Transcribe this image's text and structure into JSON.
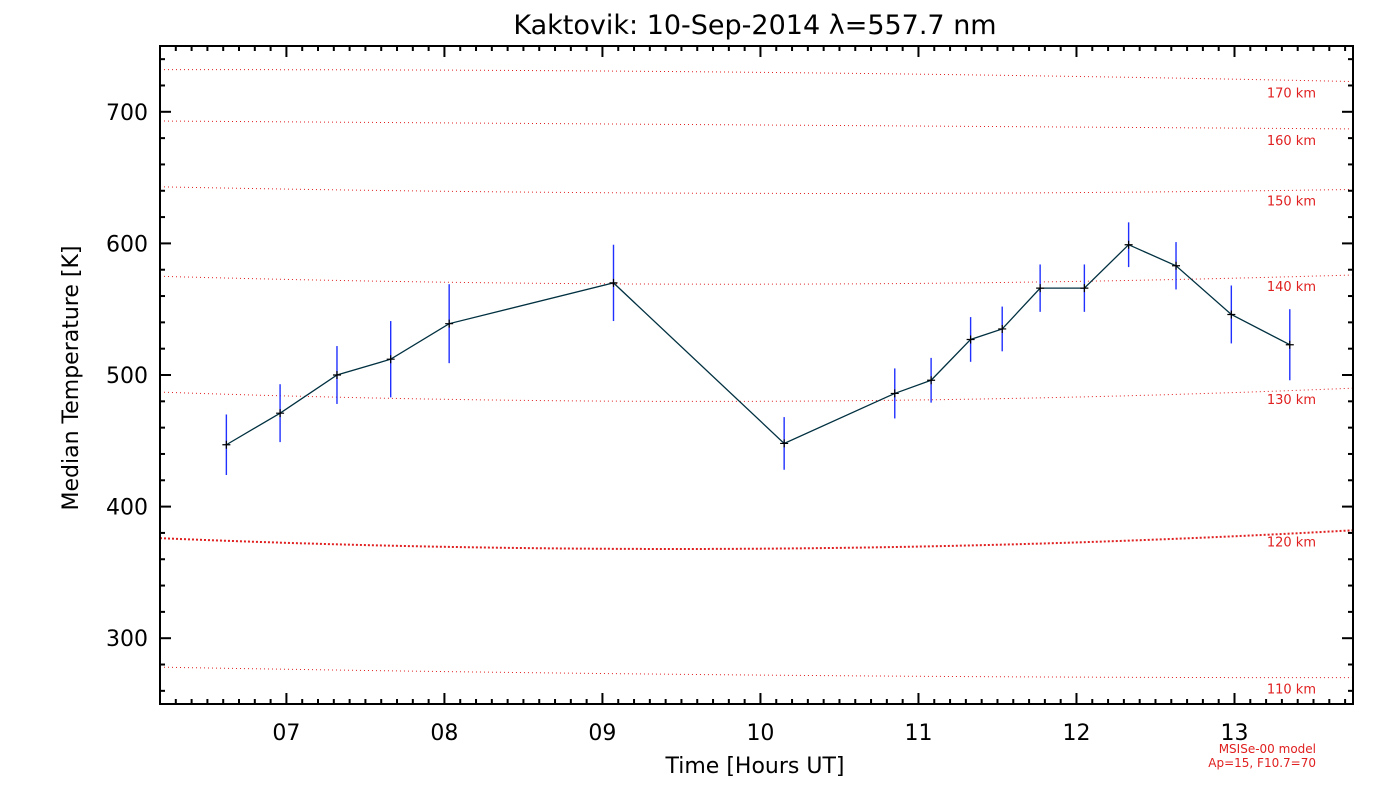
{
  "chart_data": {
    "type": "line",
    "title": "Kaktovik: 10-Sep-2014 λ=557.7 nm",
    "xlabel": "Time [Hours UT]",
    "ylabel": "Median Temperature [K]",
    "xlim": [
      6.2,
      13.75
    ],
    "ylim": [
      250,
      750
    ],
    "x_ticks": [
      7,
      8,
      9,
      10,
      11,
      12,
      13
    ],
    "x_tick_labels": [
      "07",
      "08",
      "09",
      "10",
      "11",
      "12",
      "13"
    ],
    "y_ticks": [
      300,
      400,
      500,
      600,
      700
    ],
    "y_tick_labels": [
      "300",
      "400",
      "500",
      "600",
      "700"
    ],
    "series": [
      {
        "name": "Median Temperature",
        "color": "#003040",
        "error_color": "#2030ff",
        "x": [
          6.62,
          6.96,
          7.32,
          7.66,
          8.03,
          9.07,
          10.15,
          10.85,
          11.08,
          11.33,
          11.53,
          11.77,
          12.05,
          12.33,
          12.63,
          12.98,
          13.35
        ],
        "y": [
          447,
          471,
          500,
          512,
          539,
          570,
          448,
          486,
          496,
          527,
          535,
          566,
          566,
          599,
          583,
          546,
          523
        ],
        "err": [
          23,
          22,
          22,
          29,
          30,
          29,
          20,
          19,
          17,
          17,
          17,
          18,
          18,
          17,
          18,
          22,
          27
        ]
      }
    ],
    "altitude_curves": [
      {
        "label": "110 km",
        "y_start": 278,
        "y_mid": 272,
        "y_end": 270,
        "style": "thin"
      },
      {
        "label": "120 km",
        "y_start": 376,
        "y_mid": 368,
        "y_end": 382,
        "style": "thick"
      },
      {
        "label": "130 km",
        "y_start": 487,
        "y_mid": 480,
        "y_end": 490,
        "style": "thin"
      },
      {
        "label": "140 km",
        "y_start": 575,
        "y_mid": 569,
        "y_end": 576,
        "style": "thin"
      },
      {
        "label": "150 km",
        "y_start": 643,
        "y_mid": 638,
        "y_end": 641,
        "style": "thin"
      },
      {
        "label": "160 km",
        "y_start": 693,
        "y_mid": 690,
        "y_end": 687,
        "style": "thin"
      },
      {
        "label": "170 km",
        "y_start": 732,
        "y_mid": 730,
        "y_end": 723,
        "style": "thin"
      }
    ],
    "model_note": [
      "MSISe-00 model",
      "Ap=15, F10.7=70"
    ],
    "colors": {
      "axis": "#000000",
      "altitude": "#e02020",
      "line": "#003040",
      "error": "#2030ff"
    }
  }
}
